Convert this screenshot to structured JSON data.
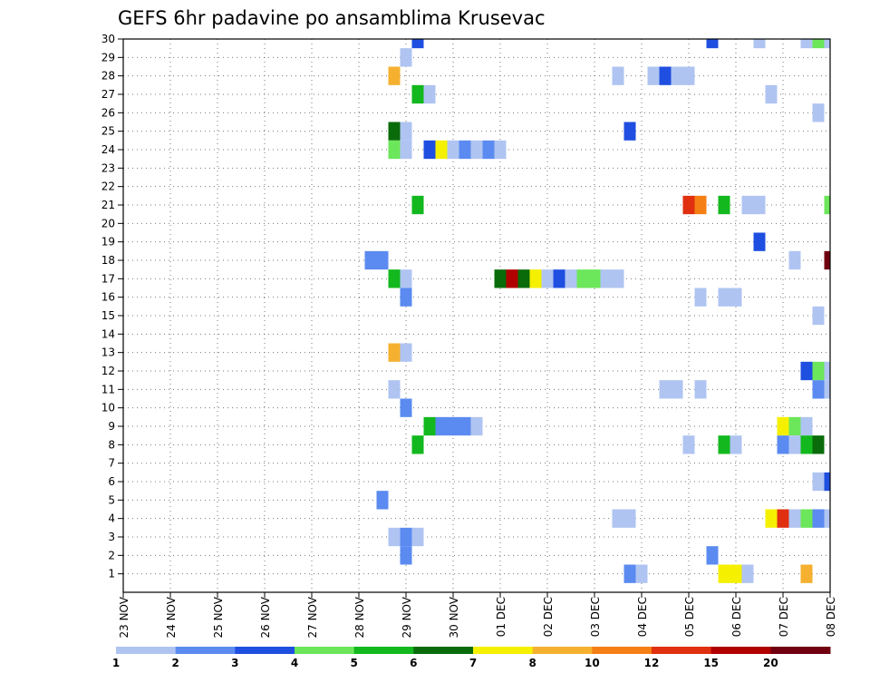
{
  "chart_data": {
    "type": "heatmap",
    "title": "GEFS 6hr padavine po ansamblima Krusevac",
    "xlabel": "",
    "ylabel": "",
    "x_tick_labels": [
      "23 NOV",
      "24 NOV",
      "25 NOV",
      "26 NOV",
      "27 NOV",
      "28 NOV",
      "29 NOV",
      "30 NOV",
      "01 DEC",
      "02 DEC",
      "03 DEC",
      "04 DEC",
      "05 DEC",
      "06 DEC",
      "07 DEC",
      "08 DEC"
    ],
    "y_tick_labels": [
      "1",
      "2",
      "3",
      "4",
      "5",
      "6",
      "7",
      "8",
      "9",
      "10",
      "11",
      "12",
      "13",
      "14",
      "15",
      "16",
      "17",
      "18",
      "19",
      "20",
      "21",
      "22",
      "23",
      "24",
      "25",
      "26",
      "27",
      "28",
      "29",
      "30"
    ],
    "xlim_days": [
      0,
      15
    ],
    "ylim_members": [
      0,
      30
    ],
    "grid": true,
    "colorbar": {
      "labels": [
        "1",
        "2",
        "3",
        "4",
        "5",
        "6",
        "7",
        "8",
        "10",
        "12",
        "15",
        "20"
      ],
      "colors": [
        "#b0c4f2",
        "#5b8bf0",
        "#1f4fe0",
        "#6ce65a",
        "#12b81e",
        "#0a6b0a",
        "#f5f000",
        "#f5b030",
        "#f57f14",
        "#e03010",
        "#b00000",
        "#700010"
      ]
    },
    "cells": [
      {
        "m": 30,
        "d": 6.25,
        "c": 3
      },
      {
        "m": 30,
        "d": 12.5,
        "c": 3
      },
      {
        "m": 30,
        "d": 13.5,
        "c": 1
      },
      {
        "m": 30,
        "d": 14.5,
        "c": 1
      },
      {
        "m": 30,
        "d": 14.75,
        "c": 4
      },
      {
        "m": 30,
        "d": 15,
        "c": 1
      },
      {
        "m": 29,
        "d": 6.0,
        "c": 1
      },
      {
        "m": 28,
        "d": 5.75,
        "c": 8
      },
      {
        "m": 28,
        "d": 10.5,
        "c": 1
      },
      {
        "m": 28,
        "d": 11.25,
        "c": 1
      },
      {
        "m": 28,
        "d": 11.5,
        "c": 3
      },
      {
        "m": 28,
        "d": 11.75,
        "c": 1
      },
      {
        "m": 28,
        "d": 12.0,
        "c": 1
      },
      {
        "m": 27,
        "d": 6.25,
        "c": 5
      },
      {
        "m": 27,
        "d": 6.5,
        "c": 1
      },
      {
        "m": 27,
        "d": 13.75,
        "c": 1
      },
      {
        "m": 26,
        "d": 14.75,
        "c": 1
      },
      {
        "m": 25,
        "d": 5.75,
        "c": 6
      },
      {
        "m": 25,
        "d": 6.0,
        "c": 1
      },
      {
        "m": 25,
        "d": 10.75,
        "c": 3
      },
      {
        "m": 24,
        "d": 5.75,
        "c": 4
      },
      {
        "m": 24,
        "d": 6.0,
        "c": 1
      },
      {
        "m": 24,
        "d": 6.5,
        "c": 3
      },
      {
        "m": 24,
        "d": 6.75,
        "c": 7
      },
      {
        "m": 24,
        "d": 7.0,
        "c": 1
      },
      {
        "m": 24,
        "d": 7.25,
        "c": 2
      },
      {
        "m": 24,
        "d": 7.5,
        "c": 1
      },
      {
        "m": 24,
        "d": 7.75,
        "c": 2
      },
      {
        "m": 24,
        "d": 8.0,
        "c": 1
      },
      {
        "m": 21,
        "d": 6.25,
        "c": 5
      },
      {
        "m": 21,
        "d": 12.0,
        "c": 10
      },
      {
        "m": 21,
        "d": 12.25,
        "c": 9
      },
      {
        "m": 21,
        "d": 12.75,
        "c": 5
      },
      {
        "m": 21,
        "d": 13.25,
        "c": 1
      },
      {
        "m": 21,
        "d": 13.5,
        "c": 1
      },
      {
        "m": 21,
        "d": 15,
        "c": 4
      },
      {
        "m": 19,
        "d": 13.5,
        "c": 3
      },
      {
        "m": 18,
        "d": 5.25,
        "c": 2
      },
      {
        "m": 18,
        "d": 5.5,
        "c": 2
      },
      {
        "m": 18,
        "d": 14.25,
        "c": 1
      },
      {
        "m": 18,
        "d": 15,
        "c": 12
      },
      {
        "m": 17,
        "d": 5.75,
        "c": 5
      },
      {
        "m": 17,
        "d": 6.0,
        "c": 1
      },
      {
        "m": 17,
        "d": 8.0,
        "c": 6
      },
      {
        "m": 17,
        "d": 8.25,
        "c": 11
      },
      {
        "m": 17,
        "d": 8.5,
        "c": 6
      },
      {
        "m": 17,
        "d": 8.75,
        "c": 7
      },
      {
        "m": 17,
        "d": 9.0,
        "c": 1
      },
      {
        "m": 17,
        "d": 9.25,
        "c": 3
      },
      {
        "m": 17,
        "d": 9.5,
        "c": 1
      },
      {
        "m": 17,
        "d": 9.75,
        "c": 4
      },
      {
        "m": 17,
        "d": 10.0,
        "c": 4
      },
      {
        "m": 17,
        "d": 10.25,
        "c": 1
      },
      {
        "m": 17,
        "d": 10.5,
        "c": 1
      },
      {
        "m": 16,
        "d": 6.0,
        "c": 2
      },
      {
        "m": 16,
        "d": 12.25,
        "c": 1
      },
      {
        "m": 16,
        "d": 12.75,
        "c": 1
      },
      {
        "m": 16,
        "d": 13.0,
        "c": 1
      },
      {
        "m": 15,
        "d": 14.75,
        "c": 1
      },
      {
        "m": 13,
        "d": 5.75,
        "c": 8
      },
      {
        "m": 13,
        "d": 6.0,
        "c": 1
      },
      {
        "m": 12,
        "d": 14.5,
        "c": 3
      },
      {
        "m": 12,
        "d": 14.75,
        "c": 4
      },
      {
        "m": 12,
        "d": 15,
        "c": 1
      },
      {
        "m": 11,
        "d": 5.75,
        "c": 1
      },
      {
        "m": 11,
        "d": 11.5,
        "c": 1
      },
      {
        "m": 11,
        "d": 11.75,
        "c": 1
      },
      {
        "m": 11,
        "d": 12.25,
        "c": 1
      },
      {
        "m": 11,
        "d": 14.75,
        "c": 2
      },
      {
        "m": 11,
        "d": 15,
        "c": 1
      },
      {
        "m": 10,
        "d": 6.0,
        "c": 2
      },
      {
        "m": 9,
        "d": 6.5,
        "c": 5
      },
      {
        "m": 9,
        "d": 6.75,
        "c": 2
      },
      {
        "m": 9,
        "d": 7.0,
        "c": 2
      },
      {
        "m": 9,
        "d": 7.25,
        "c": 2
      },
      {
        "m": 9,
        "d": 7.5,
        "c": 1
      },
      {
        "m": 9,
        "d": 14.0,
        "c": 7
      },
      {
        "m": 9,
        "d": 14.25,
        "c": 4
      },
      {
        "m": 9,
        "d": 14.5,
        "c": 1
      },
      {
        "m": 8,
        "d": 6.25,
        "c": 5
      },
      {
        "m": 8,
        "d": 12.0,
        "c": 1
      },
      {
        "m": 8,
        "d": 12.75,
        "c": 5
      },
      {
        "m": 8,
        "d": 13.0,
        "c": 1
      },
      {
        "m": 8,
        "d": 14.0,
        "c": 2
      },
      {
        "m": 8,
        "d": 14.25,
        "c": 1
      },
      {
        "m": 8,
        "d": 14.5,
        "c": 5
      },
      {
        "m": 8,
        "d": 14.75,
        "c": 6
      },
      {
        "m": 6,
        "d": 14.75,
        "c": 1
      },
      {
        "m": 6,
        "d": 15,
        "c": 3
      },
      {
        "m": 5,
        "d": 5.5,
        "c": 2
      },
      {
        "m": 4,
        "d": 10.5,
        "c": 1
      },
      {
        "m": 4,
        "d": 10.75,
        "c": 1
      },
      {
        "m": 4,
        "d": 13.75,
        "c": 7
      },
      {
        "m": 4,
        "d": 14.0,
        "c": 10
      },
      {
        "m": 4,
        "d": 14.25,
        "c": 1
      },
      {
        "m": 4,
        "d": 14.5,
        "c": 4
      },
      {
        "m": 4,
        "d": 14.75,
        "c": 2
      },
      {
        "m": 4,
        "d": 15.0,
        "c": 1
      },
      {
        "m": 3,
        "d": 5.75,
        "c": 1
      },
      {
        "m": 3,
        "d": 6.0,
        "c": 2
      },
      {
        "m": 3,
        "d": 6.25,
        "c": 1
      },
      {
        "m": 2,
        "d": 6.0,
        "c": 2
      },
      {
        "m": 2,
        "d": 12.5,
        "c": 2
      },
      {
        "m": 1,
        "d": 10.75,
        "c": 2
      },
      {
        "m": 1,
        "d": 11.0,
        "c": 1
      },
      {
        "m": 1,
        "d": 12.75,
        "c": 7
      },
      {
        "m": 1,
        "d": 13.0,
        "c": 7
      },
      {
        "m": 1,
        "d": 13.25,
        "c": 1
      },
      {
        "m": 1,
        "d": 14.5,
        "c": 8
      }
    ]
  }
}
